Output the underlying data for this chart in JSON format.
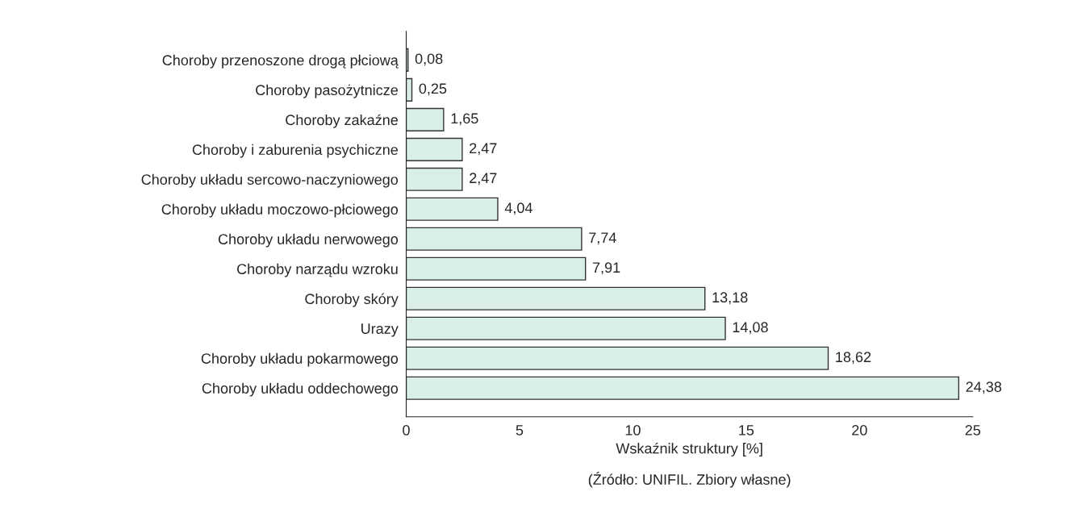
{
  "chart_data": {
    "type": "bar",
    "orientation": "horizontal",
    "categories": [
      "Choroby przenoszone drogą płciową",
      "Choroby pasożytnicze",
      "Choroby zakaźne",
      "Choroby i zaburenia psychiczne",
      "Choroby układu sercowo-naczyniowego",
      "Choroby układu moczowo-płciowego",
      "Choroby układu nerwowego",
      "Choroby narządu wzroku",
      "Choroby skóry",
      "Urazy",
      "Choroby układu pokarmowego",
      "Choroby układu oddechowego"
    ],
    "values": [
      0.08,
      0.25,
      1.65,
      2.47,
      2.47,
      4.04,
      7.74,
      7.91,
      13.18,
      14.08,
      18.62,
      24.38
    ],
    "value_labels": [
      "0,08",
      "0,25",
      "1,65",
      "2,47",
      "2,47",
      "4,04",
      "7,74",
      "7,91",
      "13,18",
      "14,08",
      "18,62",
      "24,38"
    ],
    "color": "#d9efe6",
    "xlim": [
      0,
      25
    ],
    "xticks": [
      0,
      5,
      10,
      15,
      20,
      25
    ],
    "xlabel": "Wskaźnik struktury [%]",
    "annotations": [
      "(Źródło: UNIFIL. Zbiory własne)"
    ],
    "grid": false
  }
}
